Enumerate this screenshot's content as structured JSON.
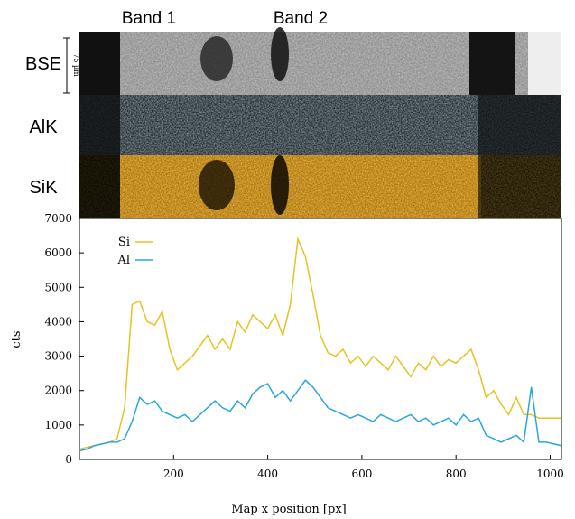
{
  "image_panels": {
    "band_labels": [
      "Band 1",
      "Band 2"
    ],
    "rows": [
      "BSE",
      "AlK",
      "SiK"
    ],
    "scale_bar": "75 µm"
  },
  "chart_data": {
    "type": "line",
    "xlabel": "Map x position [px]",
    "ylabel": "cts",
    "xlim": [
      0,
      1024
    ],
    "ylim": [
      0,
      7000
    ],
    "xticks": [
      200,
      400,
      600,
      800,
      1000
    ],
    "yticks": [
      0,
      1000,
      2000,
      3000,
      4000,
      5000,
      6000,
      7000
    ],
    "legend": "upper left",
    "x": [
      0,
      16,
      32,
      48,
      64,
      80,
      96,
      112,
      128,
      144,
      160,
      176,
      192,
      208,
      224,
      240,
      256,
      272,
      288,
      304,
      320,
      336,
      352,
      368,
      384,
      400,
      416,
      432,
      448,
      464,
      480,
      496,
      512,
      528,
      544,
      560,
      576,
      592,
      608,
      624,
      640,
      656,
      672,
      688,
      704,
      720,
      736,
      752,
      768,
      784,
      800,
      816,
      832,
      848,
      864,
      880,
      896,
      912,
      928,
      944,
      960,
      976,
      992,
      1008,
      1024
    ],
    "series": [
      {
        "name": "Si",
        "color": "#e6c322",
        "values": [
          300,
          350,
          400,
          450,
          500,
          600,
          1500,
          4500,
          4600,
          4000,
          3900,
          4300,
          3200,
          2600,
          2800,
          3000,
          3300,
          3600,
          3200,
          3500,
          3200,
          4000,
          3700,
          4200,
          4000,
          3800,
          4200,
          3600,
          4500,
          6400,
          5900,
          4800,
          3600,
          3100,
          3000,
          3200,
          2800,
          3000,
          2700,
          3000,
          2800,
          2600,
          3000,
          2700,
          2400,
          2800,
          2600,
          3000,
          2700,
          2900,
          2800,
          3000,
          3200,
          2600,
          1800,
          2000,
          1600,
          1300,
          1800,
          1300,
          1300,
          1200,
          1200,
          1200,
          1200
        ]
      },
      {
        "name": "Al",
        "color": "#2aa6d9",
        "values": [
          250,
          300,
          400,
          450,
          500,
          500,
          600,
          1100,
          1800,
          1600,
          1700,
          1400,
          1300,
          1200,
          1300,
          1100,
          1300,
          1500,
          1700,
          1500,
          1400,
          1700,
          1500,
          1900,
          2100,
          2200,
          1800,
          2000,
          1700,
          2000,
          2300,
          2100,
          1800,
          1500,
          1400,
          1300,
          1200,
          1300,
          1200,
          1100,
          1300,
          1200,
          1100,
          1200,
          1300,
          1100,
          1200,
          1000,
          1100,
          1200,
          1000,
          1300,
          1100,
          1200,
          700,
          600,
          500,
          600,
          700,
          500,
          2100,
          500,
          500,
          450,
          400
        ]
      }
    ]
  }
}
